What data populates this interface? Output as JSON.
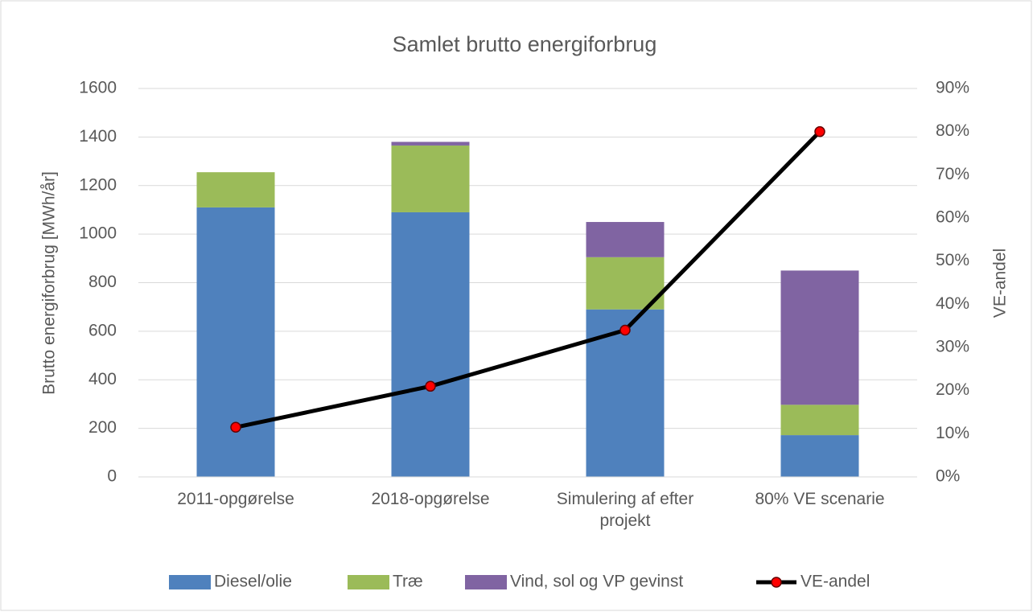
{
  "chart_data": {
    "type": "bar",
    "title": "Samlet brutto energiforbrug",
    "ylabel": "Brutto energiforbrug [MWh/år]",
    "y2label": "VE-andel",
    "categories": [
      "2011-opgørelse",
      "2018-opgørelse",
      "Simulering af efter projekt",
      "80% VE scenarie"
    ],
    "stacked": true,
    "series": [
      {
        "name": "Diesel/olie",
        "color": "#4f81bd",
        "values": [
          1110,
          1090,
          690,
          172
        ]
      },
      {
        "name": "Træ",
        "color": "#9bbb59",
        "values": [
          145,
          275,
          215,
          125
        ]
      },
      {
        "name": "Vind, sol og VP gevinst",
        "color": "#8064a2",
        "values": [
          0,
          15,
          145,
          553
        ]
      },
      {
        "name": "VE-andel",
        "type": "line",
        "axis": "y2",
        "color": "#000000",
        "marker_color": "#ff0000",
        "values": [
          11.5,
          21,
          34,
          80
        ]
      }
    ],
    "ylim": [
      0,
      1600
    ],
    "yticks": [
      0,
      200,
      400,
      600,
      800,
      1000,
      1200,
      1400,
      1600
    ],
    "y2lim": [
      0,
      90
    ],
    "y2ticks": [
      {
        "value": 0,
        "label": "0%"
      },
      {
        "value": 10,
        "label": "10%"
      },
      {
        "value": 20,
        "label": "20%"
      },
      {
        "value": 30,
        "label": "30%"
      },
      {
        "value": 40,
        "label": "40%"
      },
      {
        "value": 50,
        "label": "50%"
      },
      {
        "value": 60,
        "label": "60%"
      },
      {
        "value": 70,
        "label": "70%"
      },
      {
        "value": 80,
        "label": "80%"
      },
      {
        "value": 90,
        "label": "90%"
      }
    ],
    "grid": true,
    "legend": "bottom"
  }
}
